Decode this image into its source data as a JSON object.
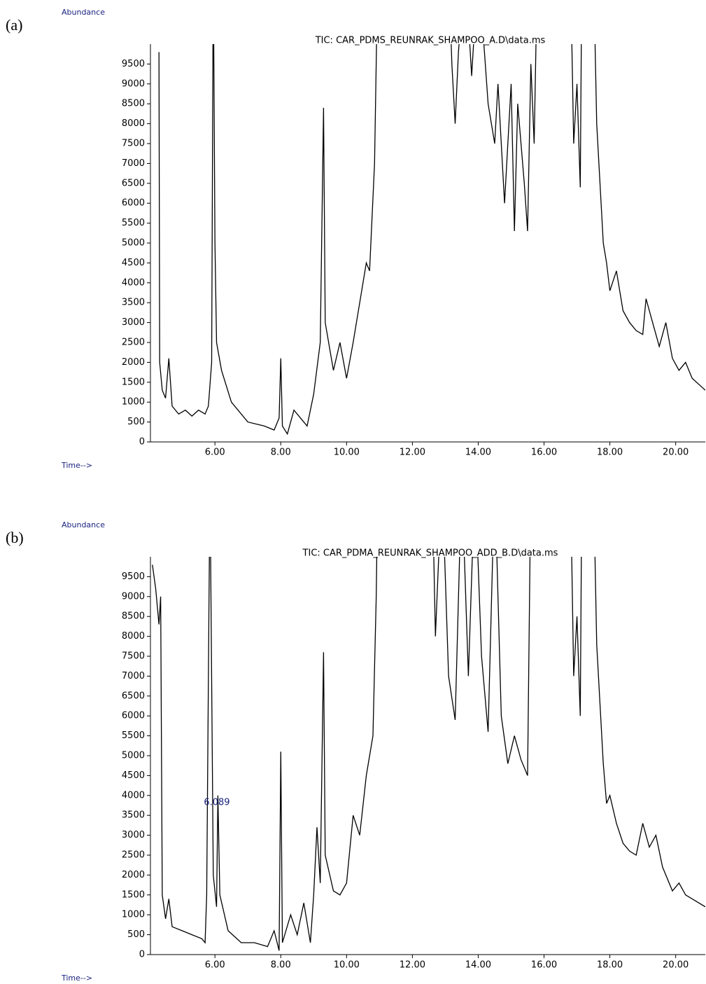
{
  "chart_data": [
    {
      "type": "line",
      "panel": "(a)",
      "ylabel": "Abundance",
      "xlabel": "Time-->",
      "title": "TIC: CAR_PDMS_REUNRAK_SHAMPOO_A.D\\data.ms",
      "color": "#000000",
      "xlim": [
        4.04,
        20.9
      ],
      "ylim": [
        0,
        10000
      ],
      "xticks": [
        {
          "value": 6,
          "label": "6.00"
        },
        {
          "value": 8,
          "label": "8.00"
        },
        {
          "value": 10,
          "label": "10.00"
        },
        {
          "value": 12,
          "label": "12.00"
        },
        {
          "value": 14,
          "label": "14.00"
        },
        {
          "value": 16,
          "label": "16.00"
        },
        {
          "value": 18,
          "label": "18.00"
        },
        {
          "value": 20,
          "label": "20.00"
        }
      ],
      "yticks": [
        0,
        500,
        1000,
        1500,
        2000,
        2500,
        3000,
        3500,
        4000,
        4500,
        5000,
        5500,
        6000,
        6500,
        7000,
        7500,
        8000,
        8500,
        9000,
        9500
      ],
      "x": [
        4.3,
        4.32,
        4.4,
        4.5,
        4.6,
        4.7,
        4.9,
        5.1,
        5.3,
        5.5,
        5.7,
        5.8,
        5.9,
        5.95,
        6.0,
        6.05,
        6.2,
        6.5,
        7.0,
        7.5,
        7.8,
        7.95,
        8.0,
        8.05,
        8.2,
        8.4,
        8.6,
        8.8,
        9.0,
        9.2,
        9.3,
        9.35,
        9.6,
        9.8,
        10.0,
        10.2,
        10.4,
        10.6,
        10.7,
        10.85,
        10.95,
        13.1,
        13.2,
        13.3,
        13.4,
        13.6,
        13.8,
        14.0,
        14.3,
        14.5,
        14.6,
        14.8,
        15.0,
        15.1,
        15.2,
        15.4,
        15.5,
        15.6,
        15.7,
        15.8,
        16.8,
        16.9,
        17.0,
        17.1,
        17.15,
        17.5,
        17.6,
        17.8,
        17.9,
        18.0,
        18.2,
        18.4,
        18.6,
        18.8,
        19.0,
        19.1,
        19.3,
        19.5,
        19.7,
        19.9,
        20.1,
        20.3,
        20.5,
        20.9
      ],
      "values": [
        9800,
        2000,
        1300,
        1100,
        2100,
        900,
        700,
        800,
        650,
        800,
        700,
        900,
        2000,
        12000,
        5000,
        2500,
        1800,
        1000,
        500,
        400,
        300,
        600,
        2100,
        400,
        200,
        800,
        600,
        400,
        1200,
        2500,
        8400,
        3000,
        1800,
        2500,
        1600,
        2500,
        3500,
        4500,
        4300,
        7000,
        12000,
        12000,
        9500,
        8000,
        9800,
        12000,
        9200,
        12000,
        8500,
        7500,
        9000,
        6000,
        9000,
        5300,
        8500,
        6500,
        5300,
        9500,
        7500,
        12000,
        12000,
        7500,
        9000,
        6400,
        12000,
        12000,
        8000,
        5000,
        4500,
        3800,
        4300,
        3300,
        3000,
        2800,
        2700,
        3600,
        3000,
        2400,
        3000,
        2100,
        1800,
        2000,
        1600,
        1300
      ]
    },
    {
      "type": "line",
      "panel": "(b)",
      "ylabel": "Abundance",
      "xlabel": "Time-->",
      "title": "TIC: CAR_PDMA_REUNRAK_SHAMPOO_ADD_B.D\\data.ms",
      "color": "#000000",
      "xlim": [
        4.04,
        20.9
      ],
      "ylim": [
        0,
        10000
      ],
      "xticks": [
        {
          "value": 6,
          "label": "6.00"
        },
        {
          "value": 8,
          "label": "8.00"
        },
        {
          "value": 10,
          "label": "10.00"
        },
        {
          "value": 12,
          "label": "12.00"
        },
        {
          "value": 14,
          "label": "14.00"
        },
        {
          "value": 16,
          "label": "16.00"
        },
        {
          "value": 18,
          "label": "18.00"
        },
        {
          "value": 20,
          "label": "20.00"
        }
      ],
      "yticks": [
        0,
        500,
        1000,
        1500,
        2000,
        2500,
        3000,
        3500,
        4000,
        4500,
        5000,
        5500,
        6000,
        6500,
        7000,
        7500,
        8000,
        8500,
        9000,
        9500
      ],
      "peak_labels": [
        6.089
      ],
      "x": [
        4.1,
        4.2,
        4.3,
        4.35,
        4.4,
        4.5,
        4.6,
        4.7,
        5.0,
        5.3,
        5.6,
        5.7,
        5.75,
        5.85,
        5.95,
        6.05,
        6.089,
        6.15,
        6.4,
        6.8,
        7.2,
        7.6,
        7.8,
        7.95,
        8.0,
        8.05,
        8.3,
        8.5,
        8.7,
        8.9,
        9.0,
        9.1,
        9.2,
        9.3,
        9.35,
        9.6,
        9.8,
        10.0,
        10.2,
        10.4,
        10.6,
        10.8,
        10.9,
        10.95,
        12.6,
        12.7,
        12.9,
        13.1,
        13.3,
        13.5,
        13.7,
        13.9,
        14.1,
        14.3,
        14.5,
        14.7,
        14.9,
        15.1,
        15.3,
        15.5,
        15.6,
        16.8,
        16.9,
        17.0,
        17.1,
        17.15,
        17.5,
        17.6,
        17.8,
        17.9,
        18.0,
        18.2,
        18.4,
        18.6,
        18.8,
        19.0,
        19.2,
        19.4,
        19.6,
        19.9,
        20.1,
        20.3,
        20.9
      ],
      "values": [
        9800,
        9200,
        8300,
        9000,
        1500,
        900,
        1400,
        700,
        600,
        500,
        400,
        300,
        1500,
        12000,
        2000,
        1200,
        4000,
        1500,
        600,
        300,
        300,
        200,
        600,
        100,
        5100,
        300,
        1000,
        500,
        1300,
        300,
        1500,
        3200,
        1800,
        7600,
        2500,
        1600,
        1500,
        1800,
        3500,
        3000,
        4500,
        5500,
        9000,
        12000,
        12000,
        8000,
        12000,
        7000,
        5900,
        12000,
        7000,
        12000,
        7500,
        5600,
        12000,
        6000,
        4800,
        5500,
        4900,
        4500,
        12000,
        12000,
        7000,
        8500,
        6000,
        12000,
        12000,
        7800,
        4800,
        3800,
        4000,
        3300,
        2800,
        2600,
        2500,
        3300,
        2700,
        3000,
        2200,
        1600,
        1800,
        1500,
        1200
      ]
    }
  ]
}
